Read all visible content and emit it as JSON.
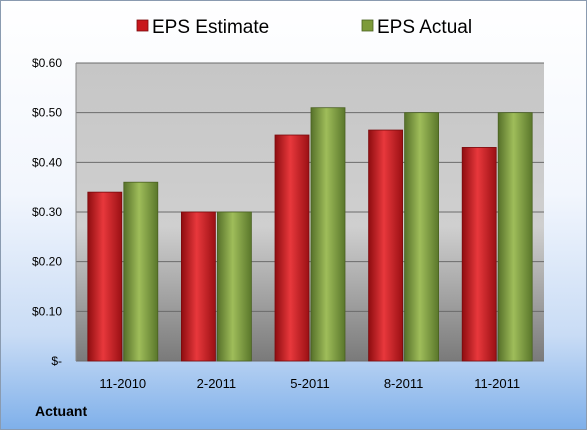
{
  "footer": {
    "company": "Actuant"
  },
  "chart_data": {
    "type": "bar",
    "title": "",
    "xlabel": "",
    "ylabel": "",
    "categories": [
      "11-2010",
      "2-2011",
      "5-2011",
      "8-2011",
      "11-2011"
    ],
    "series": [
      {
        "name": "EPS Estimate",
        "color": "#c8171c",
        "values": [
          0.34,
          0.3,
          0.455,
          0.465,
          0.43
        ]
      },
      {
        "name": "EPS Actual",
        "color": "#7d9b3a",
        "values": [
          0.36,
          0.3,
          0.51,
          0.5,
          0.5
        ]
      }
    ],
    "ylim": [
      0,
      0.6
    ],
    "yticks": [
      0,
      0.1,
      0.2,
      0.3,
      0.4,
      0.5,
      0.6
    ],
    "ytick_labels": [
      "$-",
      "$0.10",
      "$0.20",
      "$0.30",
      "$0.40",
      "$0.50",
      "$0.60"
    ],
    "grid": true,
    "legend_position": "top"
  }
}
